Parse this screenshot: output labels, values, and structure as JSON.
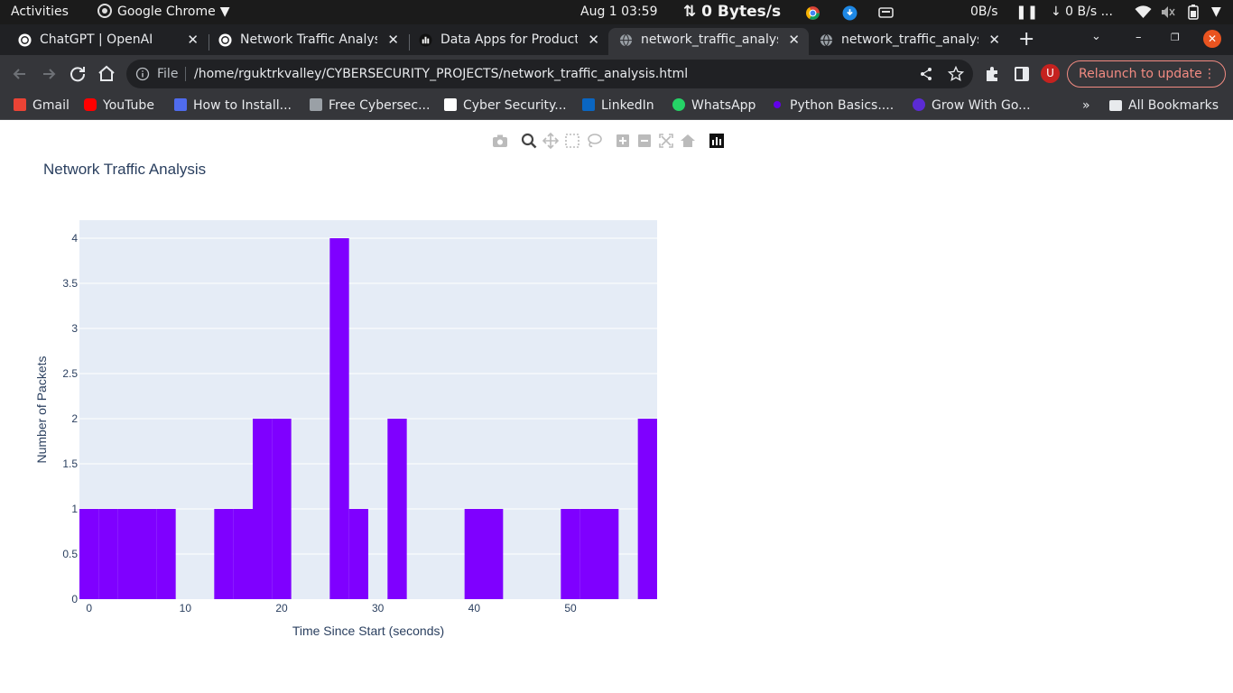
{
  "system_bar": {
    "activities": "Activities",
    "app_menu": "Google Chrome",
    "clock": "Aug 1  03:59",
    "net_speed": "0 Bytes/s",
    "upload_rate": "0B/s",
    "download_rate": "↓ 0 B/s ..."
  },
  "tabs": [
    {
      "title": "ChatGPT | OpenAI",
      "active": false
    },
    {
      "title": "Network Traffic Analysis",
      "active": false
    },
    {
      "title": "Data Apps for Production",
      "active": false
    },
    {
      "title": "network_traffic_analysis.html",
      "active": true
    },
    {
      "title": "network_traffic_analysis.html",
      "active": false
    }
  ],
  "toolbar": {
    "scheme_chip": "File",
    "url": "/home/rguktrkvalley/CYBERSECURITY_PROJECTS/network_traffic_analysis.html",
    "relaunch_label": "Relaunch to update",
    "avatar_letter": "U"
  },
  "bookmarks": [
    {
      "label": "Gmail",
      "color": "#ea4335"
    },
    {
      "label": "YouTube",
      "color": "#ff0000"
    },
    {
      "label": "How to Install...",
      "color": "#4f6bed"
    },
    {
      "label": "Free Cybersec...",
      "color": "#9aa0a6"
    },
    {
      "label": "Cyber Security...",
      "color": "#ffffff"
    },
    {
      "label": "LinkedIn",
      "color": "#0a66c2"
    },
    {
      "label": "WhatsApp",
      "color": "#25d366"
    },
    {
      "label": "Python Basics....",
      "color": "#6200ea"
    },
    {
      "label": "Grow With Go...",
      "color": "#5b2bd4"
    }
  ],
  "bookmarks_overflow": "»",
  "all_bookmarks": "All Bookmarks",
  "chart_data": {
    "type": "bar",
    "title": "Network Traffic Analysis",
    "xlabel": "Time Since Start (seconds)",
    "ylabel": "Number of Packets",
    "bar_color": "#7f00ff",
    "bin_width": 2,
    "bins": [
      {
        "x0": -1,
        "y": 1
      },
      {
        "x0": 1,
        "y": 1
      },
      {
        "x0": 3,
        "y": 1
      },
      {
        "x0": 5,
        "y": 1
      },
      {
        "x0": 7,
        "y": 1
      },
      {
        "x0": 13,
        "y": 1
      },
      {
        "x0": 15,
        "y": 1
      },
      {
        "x0": 17,
        "y": 2
      },
      {
        "x0": 19,
        "y": 2
      },
      {
        "x0": 25,
        "y": 4
      },
      {
        "x0": 27,
        "y": 1
      },
      {
        "x0": 31,
        "y": 2
      },
      {
        "x0": 39,
        "y": 1
      },
      {
        "x0": 41,
        "y": 1
      },
      {
        "x0": 49,
        "y": 1
      },
      {
        "x0": 51,
        "y": 1
      },
      {
        "x0": 53,
        "y": 1
      },
      {
        "x0": 57,
        "y": 2
      }
    ],
    "xlim": [
      -1,
      59
    ],
    "ylim": [
      0,
      4.2
    ],
    "xticks": [
      0,
      10,
      20,
      30,
      40,
      50
    ],
    "yticks": [
      0,
      0.5,
      1,
      1.5,
      2,
      2.5,
      3,
      3.5,
      4
    ],
    "grid": true,
    "legend": "none"
  }
}
